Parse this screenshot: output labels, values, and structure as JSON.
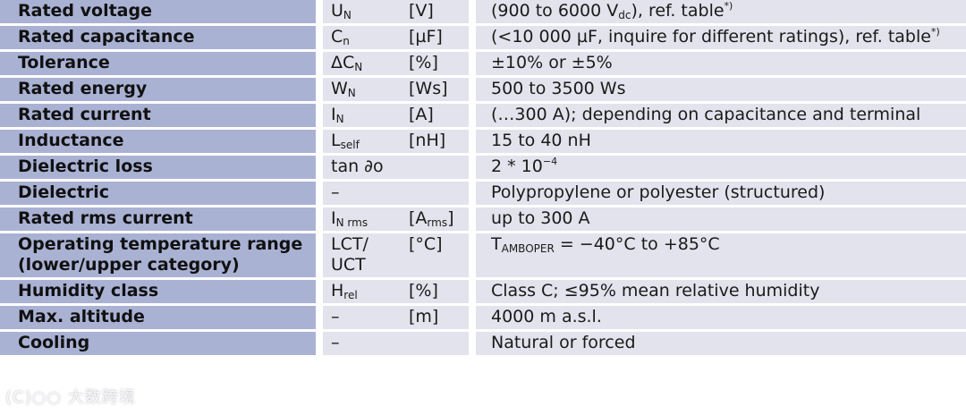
{
  "rows": [
    {
      "param": "Rated voltage",
      "sym": "U",
      "sub": "N",
      "unit": "[V]",
      "val_pre": "(900 to 6000 V",
      "val_sub": "dc",
      "val_post": "), ref. table",
      "val_sup": "*)"
    },
    {
      "param": "Rated capacitance",
      "sym": "C",
      "sub": "n",
      "unit": "[µF]",
      "val_pre": "(<10 000 µF, inquire for different ratings), ref. table",
      "val_sub": "",
      "val_post": "",
      "val_sup": "*)"
    },
    {
      "param": "Tolerance",
      "sym": "ΔC",
      "sub": "N",
      "unit": "[%]",
      "val_pre": "±10% or ±5%",
      "val_sub": "",
      "val_post": "",
      "val_sup": ""
    },
    {
      "param": "Rated energy",
      "sym": "W",
      "sub": "N",
      "unit": "[Ws]",
      "val_pre": "500 to 3500 Ws",
      "val_sub": "",
      "val_post": "",
      "val_sup": ""
    },
    {
      "param": "Rated current",
      "sym": "I",
      "sub": "N",
      "unit": "[A]",
      "val_pre": "(…300 A); depending on capacitance and terminal",
      "val_sub": "",
      "val_post": "",
      "val_sup": ""
    },
    {
      "param": "Inductance",
      "sym": "L",
      "sub": "self",
      "unit": "[nH]",
      "val_pre": "15 to 40 nH",
      "val_sub": "",
      "val_post": "",
      "val_sup": ""
    },
    {
      "param": "Dielectric loss",
      "sym": "tan ∂o",
      "sub": "",
      "unit": "",
      "val_pre": "2 * 10",
      "val_sub": "",
      "val_post": "",
      "val_sup": "−4"
    },
    {
      "param": "Dielectric",
      "sym": "–",
      "sub": "",
      "unit": "",
      "val_pre": "Polypropylene or polyester (structured)",
      "val_sub": "",
      "val_post": "",
      "val_sup": ""
    },
    {
      "param": "Rated rms current",
      "sym": "I",
      "sub": "N rms",
      "unit_pre": "[A",
      "unit_sub": "rms",
      "unit_post": "]",
      "val_pre": "up to 300 A",
      "val_sub": "",
      "val_post": "",
      "val_sup": ""
    },
    {
      "param": "Operating temperature range",
      "param2": "(lower/upper category)",
      "sym": "LCT/",
      "sym2": "UCT",
      "sub": "",
      "unit": "[°C]",
      "val_pre": "T",
      "val_sub": "AMBOPER",
      "val_post": " = −40°C to +85°C",
      "val_sup": ""
    },
    {
      "param": "Humidity class",
      "sym": "H",
      "sub": "rel",
      "unit": "[%]",
      "val_pre": "Class C; ≤95% mean relative humidity",
      "val_sub": "",
      "val_post": "",
      "val_sup": ""
    },
    {
      "param": "Max. altitude",
      "sym": "–",
      "sub": "",
      "unit": "[m]",
      "val_pre": "4000 m a.s.l.",
      "val_sub": "",
      "val_post": "",
      "val_sup": ""
    },
    {
      "param": "Cooling",
      "sym": "–",
      "sub": "",
      "unit": "",
      "val_pre": "Natural or forced",
      "val_sub": "",
      "val_post": "",
      "val_sup": ""
    }
  ],
  "watermark": "(C)○○ 大数跨境"
}
